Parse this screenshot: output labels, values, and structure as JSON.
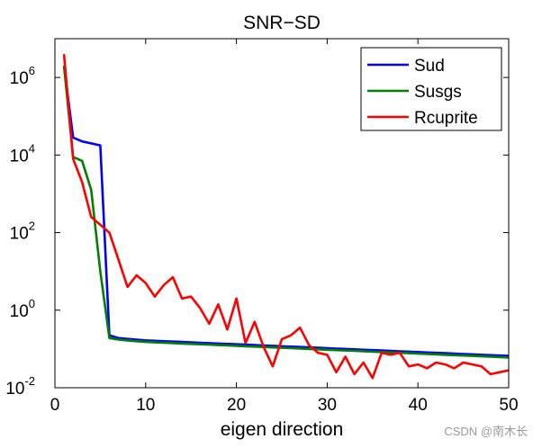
{
  "chart_data": {
    "type": "line",
    "title": "SNR−SD",
    "xlabel": "eigen direction",
    "ylabel": "",
    "xlim": [
      0,
      50
    ],
    "ylim_log10": [
      -2,
      7
    ],
    "yscale": "log",
    "x_ticks": [
      "0",
      "10",
      "20",
      "30",
      "40",
      "50"
    ],
    "y_tick_exponents": [
      "-2",
      "0",
      "2",
      "4",
      "6"
    ],
    "y_tick_base": "10",
    "grid": false,
    "legend_position": "top-right",
    "colors": {
      "Sud": "#0000ff",
      "Susgs": "#008000",
      "Rcuprite": "#ff0000"
    },
    "series": [
      {
        "name": "Sud",
        "x": [
          1,
          2,
          3,
          4,
          5,
          6,
          7,
          8,
          9,
          10,
          11,
          12,
          13,
          14,
          15,
          16,
          17,
          18,
          19,
          20,
          21,
          22,
          23,
          24,
          25,
          26,
          27,
          28,
          29,
          30,
          31,
          32,
          33,
          34,
          35,
          36,
          37,
          38,
          39,
          40,
          41,
          42,
          43,
          44,
          45,
          46,
          47,
          48,
          49,
          50
        ],
        "log10_y": [
          6.3,
          4.45,
          4.35,
          4.3,
          4.25,
          -0.65,
          -0.72,
          -0.74,
          -0.76,
          -0.78,
          -0.79,
          -0.8,
          -0.81,
          -0.82,
          -0.83,
          -0.84,
          -0.85,
          -0.86,
          -0.87,
          -0.88,
          -0.89,
          -0.9,
          -0.91,
          -0.92,
          -0.93,
          -0.94,
          -0.95,
          -0.96,
          -0.97,
          -0.98,
          -0.99,
          -1.0,
          -1.01,
          -1.02,
          -1.03,
          -1.04,
          -1.05,
          -1.06,
          -1.07,
          -1.08,
          -1.09,
          -1.1,
          -1.11,
          -1.12,
          -1.13,
          -1.14,
          -1.15,
          -1.16,
          -1.17,
          -1.18
        ]
      },
      {
        "name": "Susgs",
        "x": [
          1,
          2,
          3,
          4,
          5,
          6,
          7,
          8,
          9,
          10,
          11,
          12,
          13,
          14,
          15,
          16,
          17,
          18,
          19,
          20,
          21,
          22,
          23,
          24,
          25,
          26,
          27,
          28,
          29,
          30,
          31,
          32,
          33,
          34,
          35,
          36,
          37,
          38,
          39,
          40,
          41,
          42,
          43,
          44,
          45,
          46,
          47,
          48,
          49,
          50
        ],
        "log10_y": [
          6.3,
          3.95,
          3.85,
          3.1,
          1.0,
          -0.72,
          -0.76,
          -0.78,
          -0.8,
          -0.82,
          -0.83,
          -0.84,
          -0.85,
          -0.86,
          -0.87,
          -0.88,
          -0.89,
          -0.9,
          -0.91,
          -0.92,
          -0.93,
          -0.94,
          -0.95,
          -0.96,
          -0.97,
          -0.98,
          -0.99,
          -1.0,
          -1.01,
          -1.02,
          -1.03,
          -1.04,
          -1.05,
          -1.06,
          -1.07,
          -1.08,
          -1.09,
          -1.1,
          -1.11,
          -1.12,
          -1.13,
          -1.14,
          -1.15,
          -1.16,
          -1.17,
          -1.18,
          -1.19,
          -1.2,
          -1.21,
          -1.22
        ]
      },
      {
        "name": "Rcuprite",
        "x": [
          1,
          2,
          3,
          4,
          5,
          6,
          7,
          8,
          9,
          10,
          11,
          12,
          13,
          14,
          15,
          16,
          17,
          18,
          19,
          20,
          21,
          22,
          23,
          24,
          25,
          26,
          27,
          28,
          29,
          30,
          31,
          32,
          33,
          34,
          35,
          36,
          37,
          38,
          39,
          40,
          41,
          42,
          43,
          44,
          45,
          46,
          47,
          48,
          49,
          50
        ],
        "log10_y": [
          6.6,
          3.9,
          3.3,
          2.4,
          2.2,
          2.0,
          1.3,
          0.6,
          0.9,
          0.7,
          0.35,
          0.65,
          0.85,
          0.3,
          0.35,
          0.05,
          -0.35,
          0.15,
          -0.5,
          0.3,
          -0.85,
          -0.3,
          -0.95,
          -1.45,
          -0.75,
          -0.65,
          -0.45,
          -0.9,
          -1.1,
          -1.15,
          -1.6,
          -1.2,
          -1.65,
          -1.35,
          -1.75,
          -1.1,
          -1.15,
          -1.1,
          -1.45,
          -1.4,
          -1.5,
          -1.35,
          -1.4,
          -1.5,
          -1.35,
          -1.4,
          -1.45,
          -1.65,
          -1.6,
          -1.55
        ]
      }
    ]
  },
  "watermark": "CSDN @南木长"
}
